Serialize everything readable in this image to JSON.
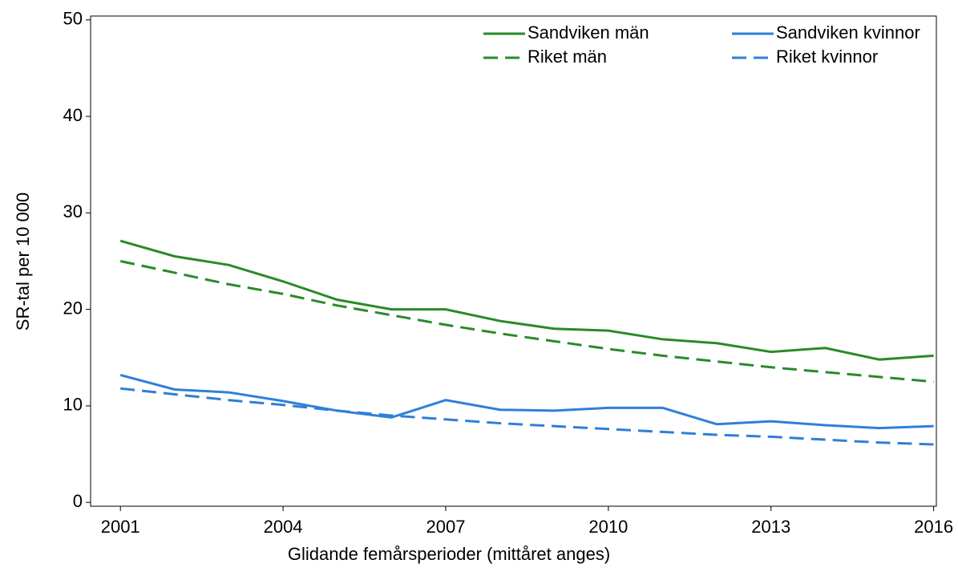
{
  "chart_data": {
    "type": "line",
    "xlabel": "Glidande femårsperioder (mittåret anges)",
    "ylabel": "SR-tal per 10 000",
    "x": [
      2001,
      2002,
      2003,
      2004,
      2005,
      2006,
      2007,
      2008,
      2009,
      2010,
      2011,
      2012,
      2013,
      2014,
      2015,
      2016
    ],
    "series": [
      {
        "name": "Sandviken män",
        "color": "#2a8a2a",
        "dash": false,
        "values": [
          27.1,
          25.5,
          24.6,
          22.9,
          21.0,
          20.0,
          20.0,
          18.8,
          18.0,
          17.8,
          16.9,
          16.5,
          15.6,
          16.0,
          14.8,
          15.2
        ]
      },
      {
        "name": "Sandviken kvinnor",
        "color": "#2f7fd8",
        "dash": false,
        "values": [
          13.2,
          11.7,
          11.4,
          10.5,
          9.5,
          8.8,
          10.6,
          9.6,
          9.5,
          9.8,
          9.8,
          8.1,
          8.4,
          8.0,
          7.7,
          7.9
        ]
      },
      {
        "name": "Riket män",
        "color": "#2a8a2a",
        "dash": true,
        "values": [
          25.0,
          23.8,
          22.6,
          21.6,
          20.4,
          19.4,
          18.4,
          17.5,
          16.7,
          15.9,
          15.2,
          14.6,
          14.0,
          13.5,
          13.0,
          12.5
        ]
      },
      {
        "name": "Riket kvinnor",
        "color": "#2f7fd8",
        "dash": true,
        "values": [
          11.8,
          11.2,
          10.6,
          10.1,
          9.5,
          9.0,
          8.6,
          8.2,
          7.9,
          7.6,
          7.3,
          7.0,
          6.8,
          6.5,
          6.2,
          6.0
        ]
      }
    ],
    "xlim": [
      2000.45,
      2016.05
    ],
    "xticks": [
      2001,
      2004,
      2007,
      2010,
      2013,
      2016
    ],
    "ylim": [
      -0.4,
      50.4
    ],
    "yticks": [
      0,
      10,
      20,
      30,
      40,
      50
    ],
    "grid": false
  }
}
